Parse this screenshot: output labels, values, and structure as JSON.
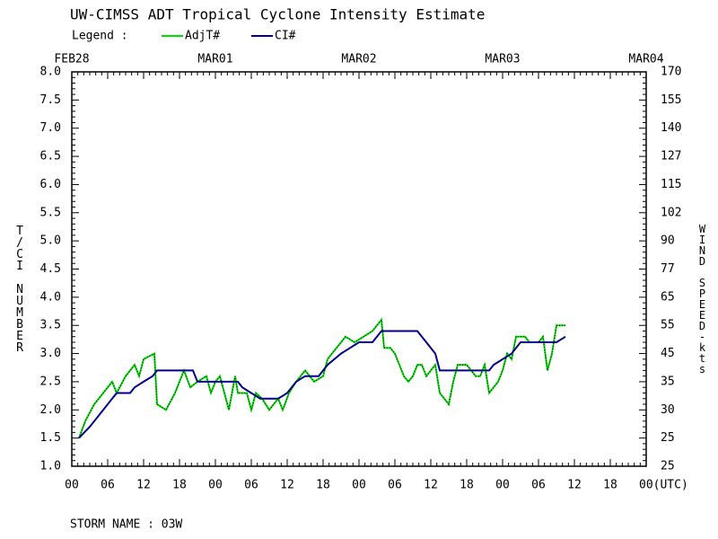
{
  "chart_data": {
    "type": "line",
    "title": "UW-CIMSS ADT Tropical Cyclone Intensity Estimate",
    "legend_label": "Legend :",
    "ylabel": "T/CI NUMBER",
    "y2label": "WIND SPEED-kts",
    "footer": "STORM NAME : 03W",
    "xlim": [
      0,
      96
    ],
    "xticks": [
      {
        "value": 0,
        "label": "00"
      },
      {
        "value": 6,
        "label": "06"
      },
      12,
      18,
      {
        "value": 24,
        "label": "00"
      },
      {
        "value": 30,
        "label": "06"
      },
      {
        "value": 36,
        "label": "12"
      },
      {
        "value": 42,
        "label": "18"
      },
      {
        "value": 48,
        "label": "00"
      },
      {
        "value": 54,
        "label": "06"
      },
      {
        "value": 60,
        "label": "12"
      },
      {
        "value": 66,
        "label": "18"
      },
      {
        "value": 72,
        "label": "00"
      },
      {
        "value": 78,
        "label": "06"
      },
      {
        "value": 84,
        "label": "12"
      },
      {
        "value": 90,
        "label": "18"
      },
      {
        "value": 96,
        "label": "00(UTC)"
      }
    ],
    "date_ticks": [
      {
        "value": 0,
        "label": "FEB28"
      },
      {
        "value": 24,
        "label": "MAR01"
      },
      {
        "value": 48,
        "label": "MAR02"
      },
      {
        "value": 72,
        "label": "MAR03"
      },
      {
        "value": 96,
        "label": "MAR04"
      }
    ],
    "ylim": [
      1,
      8
    ],
    "yticks": [
      {
        "value": 1,
        "label": "1.0"
      },
      1.5,
      {
        "value": 2,
        "label": "2.0"
      },
      2.5,
      {
        "value": 3,
        "label": "3.0"
      },
      3.5,
      {
        "value": 4,
        "label": "4.0"
      },
      4.5,
      {
        "value": 5,
        "label": "5.0"
      },
      5.5,
      {
        "value": 6,
        "label": "6.0"
      },
      6.5,
      {
        "value": 7,
        "label": "7.0"
      },
      7.5,
      {
        "value": 8,
        "label": "8.0"
      }
    ],
    "y2tick_labels": [
      "25",
      "25",
      "30",
      "35",
      "45",
      "55",
      "65",
      "77",
      "90",
      "102",
      "115",
      "127",
      "140",
      "155",
      "170"
    ],
    "series": [
      {
        "name": "AdjT#",
        "color": "#00e000",
        "x": [
          1.2,
          2.25,
          3.75,
          5.25,
          6.75,
          7.5,
          9,
          10.5,
          11.25,
          12,
          13.8,
          14.25,
          15.75,
          17.25,
          18.75,
          19.8,
          21,
          22.5,
          23.25,
          24,
          24.75,
          26.25,
          27.3,
          27.75,
          29.25,
          30,
          30.75,
          31.8,
          33,
          34.5,
          35.25,
          36.3,
          37.5,
          39,
          40.5,
          42,
          42.75,
          44.25,
          45.75,
          47.25,
          48.75,
          50.25,
          51,
          51.75,
          52.2,
          53.25,
          54,
          54.75,
          55.5,
          56.25,
          57,
          57.75,
          58.5,
          59.25,
          60,
          60.75,
          61.5,
          62.25,
          63,
          63.75,
          64.5,
          66,
          66.75,
          67.5,
          68.25,
          69,
          69.75,
          71.25,
          72,
          72.75,
          73.5,
          74.25,
          75.75,
          76.5,
          78,
          78.75,
          79.5,
          80.25,
          81,
          82.5
        ],
        "values": [
          1.5,
          1.8,
          2.1,
          2.3,
          2.5,
          2.3,
          2.6,
          2.8,
          2.6,
          2.9,
          3.0,
          2.1,
          2.0,
          2.3,
          2.7,
          2.4,
          2.5,
          2.6,
          2.3,
          2.5,
          2.6,
          2.0,
          2.6,
          2.3,
          2.3,
          2.0,
          2.3,
          2.2,
          2.0,
          2.2,
          2.0,
          2.3,
          2.5,
          2.7,
          2.5,
          2.6,
          2.9,
          3.1,
          3.3,
          3.2,
          3.3,
          3.4,
          3.5,
          3.6,
          3.1,
          3.1,
          3.0,
          2.8,
          2.6,
          2.5,
          2.6,
          2.8,
          2.8,
          2.6,
          2.7,
          2.8,
          2.3,
          2.2,
          2.1,
          2.5,
          2.8,
          2.8,
          2.7,
          2.6,
          2.6,
          2.8,
          2.3,
          2.5,
          2.7,
          3.0,
          2.9,
          3.3,
          3.3,
          3.2,
          3.2,
          3.3,
          2.7,
          3.0,
          3.5,
          3.5
        ]
      },
      {
        "name": "CI#",
        "color": "#00008b",
        "x": [
          1.2,
          3,
          4.5,
          6,
          7.5,
          9.75,
          10.5,
          12,
          13.5,
          14.25,
          20.25,
          21,
          27.75,
          28.5,
          30,
          31.5,
          34.5,
          36,
          37.5,
          39,
          41.25,
          42.75,
          45,
          46.5,
          48,
          50.25,
          51.75,
          57.75,
          59.25,
          60.75,
          61.5,
          69.75,
          70.5,
          73.5,
          75,
          81,
          82.5
        ],
        "values": [
          1.5,
          1.7,
          1.9,
          2.1,
          2.3,
          2.3,
          2.4,
          2.5,
          2.6,
          2.7,
          2.7,
          2.5,
          2.5,
          2.4,
          2.3,
          2.2,
          2.2,
          2.3,
          2.5,
          2.6,
          2.6,
          2.8,
          3.0,
          3.1,
          3.2,
          3.2,
          3.4,
          3.4,
          3.2,
          3.0,
          2.7,
          2.7,
          2.8,
          3.0,
          3.2,
          3.2,
          3.3
        ]
      }
    ]
  }
}
